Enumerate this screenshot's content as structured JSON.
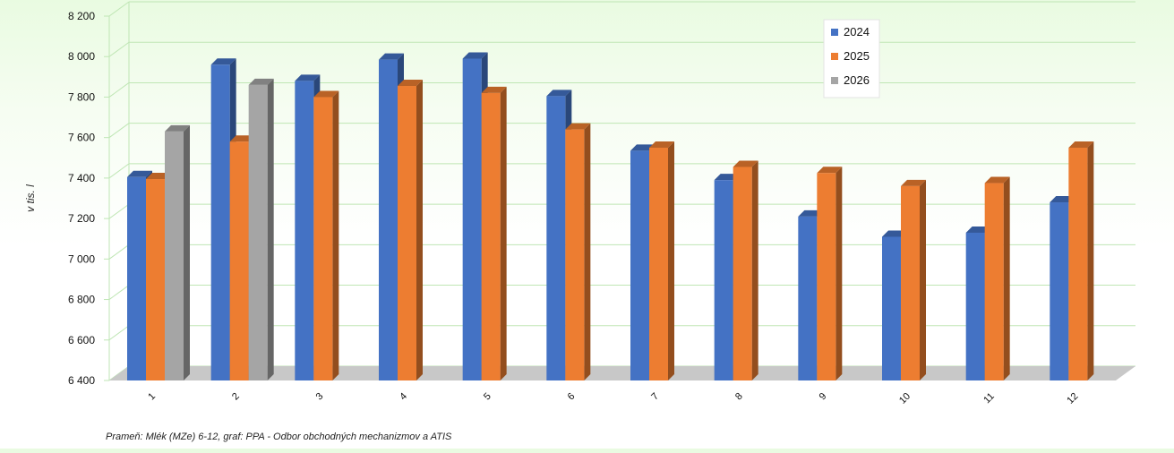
{
  "chart_data": {
    "type": "bar",
    "title": "",
    "xlabel": "",
    "ylabel": "v tis. l",
    "ylim": [
      6400,
      8200
    ],
    "yticks": [
      6400,
      6600,
      6800,
      7000,
      7200,
      7400,
      7600,
      7800,
      8000,
      8200
    ],
    "ytick_labels": [
      "6 400",
      "6 600",
      "6 800",
      "7 000",
      "7 200",
      "7 400",
      "7 600",
      "7 800",
      "8 000",
      "8 200"
    ],
    "categories": [
      "1",
      "2",
      "3",
      "4",
      "5",
      "6",
      "7",
      "8",
      "9",
      "10",
      "11",
      "12"
    ],
    "series": [
      {
        "name": "2024",
        "color": "#4472c4",
        "values": [
          7405,
          7960,
          7880,
          7985,
          7990,
          7805,
          7535,
          7390,
          7210,
          7110,
          7130,
          7280
        ]
      },
      {
        "name": "2025",
        "color": "#ed7d31",
        "values": [
          7395,
          7580,
          7800,
          7855,
          7820,
          7640,
          7550,
          7455,
          7425,
          7360,
          7375,
          7550
        ]
      },
      {
        "name": "2026",
        "color": "#a5a5a5",
        "values": [
          7630,
          7860,
          null,
          null,
          null,
          null,
          null,
          null,
          null,
          null,
          null,
          null
        ]
      }
    ],
    "grid": true,
    "legend_position": "top-right",
    "style": "3d-clustered-columns"
  },
  "source_note": "Prameň: Mlék (MZe) 6-12, graf: PPA - Odbor obchodných mechanizmov a ATIS"
}
